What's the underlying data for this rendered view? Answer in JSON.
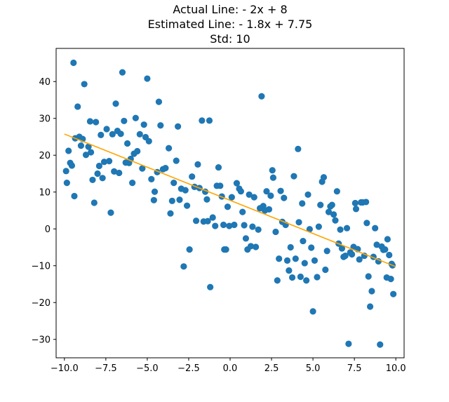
{
  "chart_data": {
    "type": "scatter",
    "title_lines": [
      "Actual Line:  - 2x + 8",
      "Estimated Line:  - 1.8x + 7.75",
      "Std: 10"
    ],
    "xlabel": "",
    "ylabel": "",
    "xlim": [
      -10.5,
      10.5
    ],
    "ylim": [
      -35,
      49
    ],
    "xticks": [
      -10.0,
      -7.5,
      -5.0,
      -2.5,
      0.0,
      2.5,
      5.0,
      7.5,
      10.0
    ],
    "xtick_labels": [
      "−10.0",
      "−7.5",
      "−5.0",
      "−2.5",
      "0.0",
      "2.5",
      "5.0",
      "7.5",
      "10.0"
    ],
    "yticks": [
      -30,
      -20,
      -10,
      0,
      10,
      20,
      30,
      40
    ],
    "ytick_labels": [
      "−30",
      "−20",
      "−10",
      "0",
      "10",
      "20",
      "30",
      "40"
    ],
    "grid": false,
    "colors": {
      "points": "#1f77b4",
      "line": "#ffa500"
    },
    "series": [
      {
        "kind": "scatter",
        "points": [
          [
            -9.9,
            15.7
          ],
          [
            -9.85,
            12.5
          ],
          [
            -9.75,
            21.2
          ],
          [
            -9.65,
            17.9
          ],
          [
            -9.55,
            17.2
          ],
          [
            -9.45,
            45.1
          ],
          [
            -9.4,
            8.9
          ],
          [
            -9.35,
            24.6
          ],
          [
            -9.2,
            33.2
          ],
          [
            -9.1,
            25.0
          ],
          [
            -9.0,
            22.6
          ],
          [
            -8.9,
            24.4
          ],
          [
            -8.8,
            39.3
          ],
          [
            -8.7,
            20.1
          ],
          [
            -8.55,
            22.3
          ],
          [
            -8.45,
            29.2
          ],
          [
            -8.4,
            20.8
          ],
          [
            -8.3,
            13.3
          ],
          [
            -8.2,
            7.1
          ],
          [
            -8.1,
            29.0
          ],
          [
            -8.0,
            15.0
          ],
          [
            -7.9,
            17.1
          ],
          [
            -7.8,
            25.5
          ],
          [
            -7.7,
            13.8
          ],
          [
            -7.6,
            18.2
          ],
          [
            -7.45,
            27.1
          ],
          [
            -7.3,
            18.4
          ],
          [
            -7.2,
            4.4
          ],
          [
            -7.1,
            25.7
          ],
          [
            -7.0,
            15.6
          ],
          [
            -6.9,
            34.0
          ],
          [
            -6.8,
            26.6
          ],
          [
            -6.7,
            15.2
          ],
          [
            -6.6,
            25.8
          ],
          [
            -6.5,
            42.5
          ],
          [
            -6.4,
            29.3
          ],
          [
            -6.3,
            18.0
          ],
          [
            -6.2,
            23.2
          ],
          [
            -6.1,
            17.9
          ],
          [
            -6.0,
            19.0
          ],
          [
            -5.9,
            12.5
          ],
          [
            -5.8,
            20.4
          ],
          [
            -5.7,
            30.1
          ],
          [
            -5.6,
            21.1
          ],
          [
            -5.45,
            25.7
          ],
          [
            -5.3,
            16.4
          ],
          [
            -5.2,
            28.3
          ],
          [
            -5.1,
            24.9
          ],
          [
            -5.0,
            40.8
          ],
          [
            -4.9,
            23.8
          ],
          [
            -4.75,
            13.5
          ],
          [
            -4.6,
            7.8
          ],
          [
            -4.55,
            10.1
          ],
          [
            -4.4,
            15.4
          ],
          [
            -4.3,
            34.5
          ],
          [
            -4.2,
            28.1
          ],
          [
            -4.05,
            16.2
          ],
          [
            -3.9,
            16.5
          ],
          [
            -3.7,
            21.9
          ],
          [
            -3.6,
            4.2
          ],
          [
            -3.5,
            7.6
          ],
          [
            -3.4,
            12.5
          ],
          [
            -3.25,
            18.5
          ],
          [
            -3.15,
            27.8
          ],
          [
            -3.05,
            7.9
          ],
          [
            -2.95,
            10.9
          ],
          [
            -2.8,
            -10.2
          ],
          [
            -2.7,
            10.5
          ],
          [
            -2.6,
            6.3
          ],
          [
            -2.45,
            -5.6
          ],
          [
            -2.3,
            14.2
          ],
          [
            -2.15,
            11.4
          ],
          [
            -2.05,
            2.2
          ],
          [
            -1.95,
            17.5
          ],
          [
            -1.85,
            11.1
          ],
          [
            -1.7,
            29.4
          ],
          [
            -1.6,
            2.0
          ],
          [
            -1.5,
            10.1
          ],
          [
            -1.4,
            8.0
          ],
          [
            -1.35,
            2.1
          ],
          [
            -1.25,
            29.4
          ],
          [
            -1.2,
            -15.8
          ],
          [
            -1.05,
            3.1
          ],
          [
            -0.9,
            0.8
          ],
          [
            -0.8,
            11.7
          ],
          [
            -0.7,
            16.7
          ],
          [
            -0.6,
            11.7
          ],
          [
            -0.5,
            8.8
          ],
          [
            -0.4,
            1.1
          ],
          [
            -0.35,
            -5.6
          ],
          [
            -0.25,
            -5.6
          ],
          [
            -0.15,
            6.0
          ],
          [
            -0.05,
            0.8
          ],
          [
            0.1,
            8.6
          ],
          [
            0.25,
            1.1
          ],
          [
            0.4,
            12.4
          ],
          [
            0.55,
            10.9
          ],
          [
            0.65,
            10.2
          ],
          [
            0.75,
            4.6
          ],
          [
            0.85,
            1.0
          ],
          [
            0.95,
            -2.6
          ],
          [
            1.05,
            -5.6
          ],
          [
            1.15,
            9.3
          ],
          [
            1.25,
            -4.7
          ],
          [
            1.35,
            0.6
          ],
          [
            1.45,
            8.6
          ],
          [
            1.55,
            -4.9
          ],
          [
            1.7,
            -0.2
          ],
          [
            1.8,
            5.6
          ],
          [
            1.9,
            36.0
          ],
          [
            2.0,
            6.2
          ],
          [
            2.1,
            5.0
          ],
          [
            2.2,
            10.2
          ],
          [
            2.35,
            5.3
          ],
          [
            2.45,
            9.0
          ],
          [
            2.55,
            15.9
          ],
          [
            2.6,
            13.9
          ],
          [
            2.75,
            -0.8
          ],
          [
            2.85,
            -14.0
          ],
          [
            2.95,
            -8.1
          ],
          [
            3.05,
            10.3
          ],
          [
            3.15,
            1.9
          ],
          [
            3.25,
            8.4
          ],
          [
            3.35,
            1.1
          ],
          [
            3.45,
            -8.6
          ],
          [
            3.55,
            -11.3
          ],
          [
            3.65,
            -5.0
          ],
          [
            3.75,
            -13.2
          ],
          [
            3.85,
            14.3
          ],
          [
            3.95,
            -8.1
          ],
          [
            4.1,
            21.7
          ],
          [
            4.15,
            1.8
          ],
          [
            4.25,
            -13.0
          ],
          [
            4.35,
            6.9
          ],
          [
            4.4,
            -3.3
          ],
          [
            4.5,
            -9.3
          ],
          [
            4.6,
            -14.0
          ],
          [
            4.7,
            9.3
          ],
          [
            4.8,
            -0.1
          ],
          [
            4.9,
            -5.1
          ],
          [
            5.0,
            -22.4
          ],
          [
            5.1,
            -8.6
          ],
          [
            5.25,
            -13.1
          ],
          [
            5.35,
            0.6
          ],
          [
            5.45,
            6.5
          ],
          [
            5.55,
            12.8
          ],
          [
            5.65,
            14.0
          ],
          [
            5.75,
            -11.1
          ],
          [
            5.85,
            -6.0
          ],
          [
            5.95,
            4.6
          ],
          [
            6.05,
            6.1
          ],
          [
            6.15,
            6.5
          ],
          [
            6.25,
            3.9
          ],
          [
            6.35,
            2.3
          ],
          [
            6.45,
            10.2
          ],
          [
            6.55,
            -4.0
          ],
          [
            6.65,
            -0.2
          ],
          [
            6.75,
            -5.3
          ],
          [
            6.85,
            -7.6
          ],
          [
            6.95,
            -7.3
          ],
          [
            7.05,
            0.2
          ],
          [
            7.15,
            -31.2
          ],
          [
            7.25,
            -6.4
          ],
          [
            7.35,
            -6.9
          ],
          [
            7.45,
            -4.9
          ],
          [
            7.55,
            7.0
          ],
          [
            7.6,
            5.4
          ],
          [
            7.7,
            -5.5
          ],
          [
            7.8,
            -8.3
          ],
          [
            7.9,
            7.2
          ],
          [
            8.0,
            7.2
          ],
          [
            8.1,
            -7.3
          ],
          [
            8.2,
            7.3
          ],
          [
            8.25,
            1.6
          ],
          [
            8.35,
            -12.9
          ],
          [
            8.45,
            -21.1
          ],
          [
            8.55,
            -16.9
          ],
          [
            8.65,
            -7.6
          ],
          [
            8.75,
            0.2
          ],
          [
            8.85,
            -4.3
          ],
          [
            8.95,
            -8.8
          ],
          [
            9.05,
            -31.4
          ],
          [
            9.15,
            -4.8
          ],
          [
            9.25,
            -5.7
          ],
          [
            9.35,
            -5.6
          ],
          [
            9.45,
            -13.2
          ],
          [
            9.5,
            -2.8
          ],
          [
            9.6,
            -7.1
          ],
          [
            9.7,
            -13.6
          ],
          [
            9.75,
            -9.5
          ],
          [
            9.8,
            -9.9
          ],
          [
            9.85,
            -17.7
          ]
        ]
      },
      {
        "kind": "line",
        "slope": -1.8,
        "intercept": 7.75,
        "x_range": [
          -10,
          10
        ]
      }
    ]
  }
}
